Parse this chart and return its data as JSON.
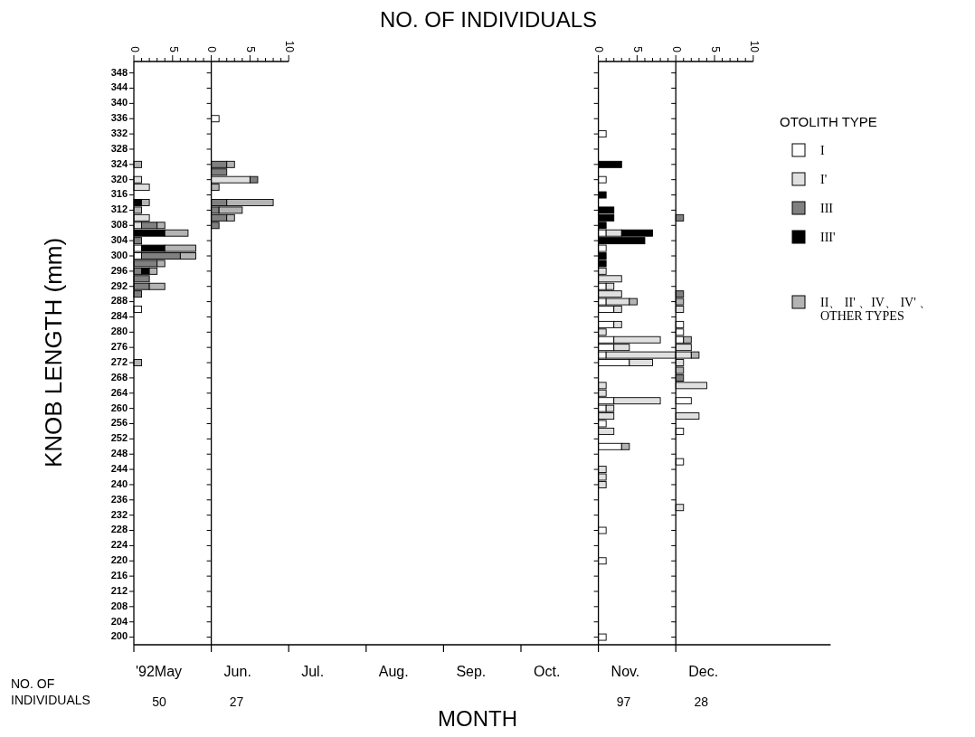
{
  "chart_data": [
    {
      "type": "bar",
      "orientation": "horizontal",
      "stacked": true,
      "ylabel": "KNOB  LENGTH (mm)",
      "legend": "right",
      "legend_title": "OTOLITH  TYPE",
      "xlim": [
        0,
        10
      ],
      "xticks": [
        0,
        {
          "value": 1,
          "label": null
        },
        {
          "value": 2,
          "label": null
        },
        {
          "value": 3,
          "label": null
        },
        {
          "value": 4,
          "label": null
        },
        5,
        {
          "value": 6,
          "label": null
        },
        {
          "value": 7,
          "label": null
        },
        {
          "value": 8,
          "label": null
        },
        {
          "value": 9,
          "label": null
        }
      ],
      "ylim": [
        198,
        351
      ],
      "yticks": [
        200,
        204,
        208,
        212,
        216,
        220,
        224,
        228,
        232,
        236,
        240,
        244,
        248,
        252,
        256,
        260,
        264,
        268,
        272,
        276,
        280,
        284,
        288,
        292,
        296,
        300,
        304,
        308,
        312,
        316,
        320,
        324,
        328,
        332,
        336,
        340,
        344,
        348
      ],
      "x": [
        324,
        320,
        318,
        314,
        312,
        310,
        308,
        306,
        304,
        302,
        300,
        298,
        296,
        294,
        292,
        290,
        286,
        272
      ],
      "series": [
        {
          "name": "I",
          "color": "#ffffff",
          "values": [
            0,
            0,
            0,
            0,
            0,
            0,
            0,
            0,
            0,
            1,
            1,
            0,
            0,
            0,
            0,
            0,
            1,
            0
          ]
        },
        {
          "name": "I'",
          "color": "#e0e0e0",
          "values": [
            0,
            1,
            2,
            0,
            0,
            2,
            1,
            0,
            0,
            0,
            0,
            0,
            0,
            0,
            0,
            0,
            0,
            0
          ]
        },
        {
          "name": "III",
          "color": "#808080",
          "values": [
            0,
            0,
            0,
            0,
            0,
            0,
            2,
            0,
            1,
            0,
            5,
            3,
            1,
            2,
            2,
            1,
            0,
            0
          ]
        },
        {
          "name": "III'",
          "color": "#000000",
          "values": [
            0,
            0,
            0,
            1,
            0,
            0,
            0,
            4,
            0,
            3,
            0,
            0,
            1,
            0,
            0,
            0,
            0,
            0
          ]
        },
        {
          "name": "II、 II' 、IV、 IV' 、 OTHER TYPES",
          "color": "#b4b4b4",
          "values": [
            1,
            0,
            0,
            1,
            1,
            0,
            1,
            3,
            0,
            4,
            2,
            1,
            1,
            0,
            2,
            0,
            0,
            1
          ]
        }
      ]
    },
    {
      "type": "bar",
      "orientation": "horizontal",
      "stacked": true,
      "tick_labels": "x",
      "xlim": [
        0,
        10
      ],
      "xticks": [
        0,
        {
          "value": 1,
          "label": null
        },
        {
          "value": 2,
          "label": null
        },
        {
          "value": 3,
          "label": null
        },
        {
          "value": 4,
          "label": null
        },
        5,
        {
          "value": 6,
          "label": null
        },
        {
          "value": 7,
          "label": null
        },
        {
          "value": 8,
          "label": null
        },
        {
          "value": 9,
          "label": null
        },
        10
      ],
      "ylim": [
        198,
        351
      ],
      "yticks": [
        200,
        204,
        208,
        212,
        216,
        220,
        224,
        228,
        232,
        236,
        240,
        244,
        248,
        252,
        256,
        260,
        264,
        268,
        272,
        276,
        280,
        284,
        288,
        292,
        296,
        300,
        304,
        308,
        312,
        316,
        320,
        324,
        328,
        332,
        336,
        340,
        344,
        348
      ],
      "x": [
        336,
        324,
        322,
        320,
        318,
        314,
        312,
        310,
        308
      ],
      "series": [
        {
          "color": "#ffffff",
          "values": [
            1,
            0,
            0,
            0,
            0,
            0,
            0,
            0,
            0
          ]
        },
        {
          "color": "#e0e0e0",
          "values": [
            0,
            0,
            0,
            5,
            0,
            0,
            0,
            0,
            0
          ]
        },
        {
          "color": "#808080",
          "values": [
            0,
            2,
            2,
            1,
            0,
            2,
            1,
            2,
            1
          ]
        },
        {
          "color": "#b4b4b4",
          "values": [
            0,
            1,
            0,
            0,
            1,
            6,
            3,
            1,
            0
          ]
        }
      ]
    },
    {
      "type": "bar",
      "orientation": "horizontal",
      "stacked": true,
      "tick_labels": "x",
      "xlim": [
        0,
        10
      ],
      "xticks": [
        0,
        {
          "value": 1,
          "label": null
        },
        {
          "value": 2,
          "label": null
        },
        {
          "value": 3,
          "label": null
        },
        {
          "value": 4,
          "label": null
        },
        5,
        {
          "value": 6,
          "label": null
        },
        {
          "value": 7,
          "label": null
        },
        {
          "value": 8,
          "label": null
        },
        {
          "value": 9,
          "label": null
        }
      ],
      "ylim": [
        198,
        351
      ],
      "yticks": [
        200,
        204,
        208,
        212,
        216,
        220,
        224,
        228,
        232,
        236,
        240,
        244,
        248,
        252,
        256,
        260,
        264,
        268,
        272,
        276,
        280,
        284,
        288,
        292,
        296,
        300,
        304,
        308,
        312,
        316,
        320,
        324,
        328,
        332,
        336,
        340,
        344,
        348
      ],
      "x": [
        332,
        324,
        320,
        316,
        312,
        310,
        308,
        306,
        304,
        302,
        300,
        298,
        296,
        294,
        292,
        290,
        288,
        286,
        282,
        280,
        278,
        276,
        274,
        272,
        266,
        264,
        262,
        260,
        258,
        256,
        254,
        250,
        244,
        242,
        240,
        228,
        220,
        200
      ],
      "series": [
        {
          "color": "#ffffff",
          "values": [
            1,
            0,
            1,
            0,
            0,
            0,
            0,
            1,
            0,
            1,
            0,
            0,
            0,
            0,
            1,
            0,
            1,
            2,
            2,
            0,
            2,
            2,
            1,
            4,
            0,
            0,
            2,
            1,
            0,
            1,
            0,
            3,
            0,
            0,
            0,
            1,
            1,
            1
          ]
        },
        {
          "color": "#e0e0e0",
          "values": [
            0,
            0,
            0,
            0,
            0,
            0,
            0,
            2,
            0,
            0,
            0,
            0,
            1,
            3,
            1,
            3,
            3,
            1,
            1,
            1,
            6,
            2,
            9,
            3,
            1,
            1,
            6,
            1,
            2,
            0,
            2,
            0,
            1,
            1,
            1,
            0,
            0,
            0
          ]
        },
        {
          "color": "#000000",
          "values": [
            0,
            3,
            0,
            1,
            2,
            2,
            1,
            4,
            6,
            0,
            1,
            1,
            0,
            0,
            0,
            0,
            0,
            0,
            0,
            0,
            0,
            0,
            0,
            0,
            0,
            0,
            0,
            0,
            0,
            0,
            0,
            0,
            0,
            0,
            0,
            0,
            0,
            0
          ]
        },
        {
          "color": "#b4b4b4",
          "values": [
            0,
            0,
            0,
            0,
            0,
            0,
            0,
            0,
            0,
            0,
            0,
            0,
            0,
            0,
            0,
            0,
            1,
            0,
            0,
            0,
            0,
            0,
            0,
            0,
            0,
            0,
            0,
            0,
            0,
            0,
            0,
            1,
            0,
            0,
            0,
            0,
            0,
            0
          ]
        }
      ]
    },
    {
      "type": "bar",
      "orientation": "horizontal",
      "stacked": true,
      "tick_labels": "x",
      "xlim": [
        0,
        10
      ],
      "xticks": [
        0,
        {
          "value": 1,
          "label": null
        },
        {
          "value": 2,
          "label": null
        },
        {
          "value": 3,
          "label": null
        },
        {
          "value": 4,
          "label": null
        },
        5,
        {
          "value": 6,
          "label": null
        },
        {
          "value": 7,
          "label": null
        },
        {
          "value": 8,
          "label": null
        },
        {
          "value": 9,
          "label": null
        },
        10
      ],
      "ylim": [
        198,
        351
      ],
      "yticks": [
        200,
        204,
        208,
        212,
        216,
        220,
        224,
        228,
        232,
        236,
        240,
        244,
        248,
        252,
        256,
        260,
        264,
        268,
        272,
        276,
        280,
        284,
        288,
        292,
        296,
        300,
        304,
        308,
        312,
        316,
        320,
        324,
        328,
        332,
        336,
        340,
        344,
        348
      ],
      "x": [
        310,
        290,
        288,
        286,
        282,
        280,
        278,
        276,
        274,
        272,
        270,
        268,
        266,
        262,
        258,
        254,
        246,
        234
      ],
      "series": [
        {
          "color": "#ffffff",
          "values": [
            0,
            0,
            0,
            0,
            1,
            1,
            1,
            0,
            0,
            0,
            0,
            0,
            0,
            2,
            0,
            1,
            1,
            0
          ]
        },
        {
          "color": "#e0e0e0",
          "values": [
            0,
            0,
            0,
            1,
            0,
            0,
            0,
            2,
            2,
            1,
            0,
            0,
            4,
            0,
            3,
            0,
            0,
            1
          ]
        },
        {
          "color": "#808080",
          "values": [
            1,
            1,
            0,
            0,
            0,
            0,
            0,
            0,
            0,
            0,
            0,
            1,
            0,
            0,
            0,
            0,
            0,
            0
          ]
        },
        {
          "color": "#b4b4b4",
          "values": [
            0,
            0,
            1,
            0,
            0,
            0,
            1,
            0,
            1,
            0,
            1,
            0,
            0,
            0,
            0,
            0,
            0,
            0
          ]
        }
      ]
    },
    {
      "type": "other",
      "title": "NO.  OF  INDIVIDUALS",
      "xlabel": "MONTH",
      "categories": [
        "'92May",
        "Jun.",
        "Jul.",
        "Aug.",
        "Sep.",
        "Oct.",
        "Nov.",
        "Dec."
      ],
      "annotations": [
        "NO.  OF INDIVIDUALS",
        {
          "text": "50",
          "x": "'92May"
        },
        {
          "text": "27",
          "x": "Jun."
        },
        {
          "text": "97",
          "x": "Nov."
        },
        {
          "text": "28",
          "x": "Dec."
        }
      ]
    }
  ]
}
